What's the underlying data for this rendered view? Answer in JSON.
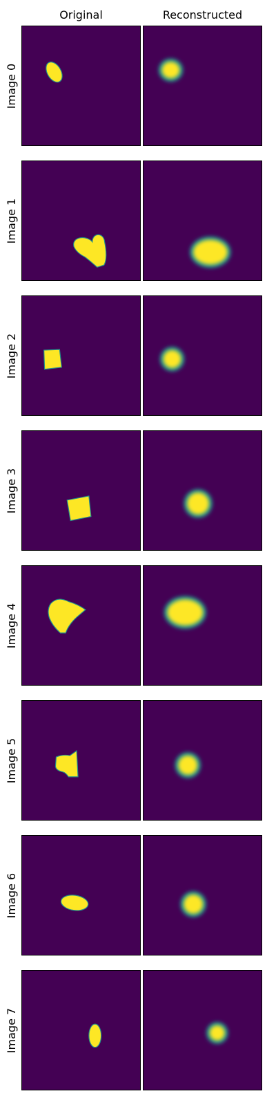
{
  "columns": {
    "original": "Original",
    "reconstructed": "Reconstructed"
  },
  "colors": {
    "background": "#440154",
    "shape": "#fde725",
    "edge": "#21918c"
  },
  "rows": [
    {
      "label": "Image 0",
      "original_shape": "ellipse",
      "reconstructed_shape": "blurred-ellipse"
    },
    {
      "label": "Image 1",
      "original_shape": "heart",
      "reconstructed_shape": "blurred-ellipse"
    },
    {
      "label": "Image 2",
      "original_shape": "square",
      "reconstructed_shape": "blurred-circle"
    },
    {
      "label": "Image 3",
      "original_shape": "square",
      "reconstructed_shape": "blurred-circle"
    },
    {
      "label": "Image 4",
      "original_shape": "heart",
      "reconstructed_shape": "blurred-ellipse"
    },
    {
      "label": "Image 5",
      "original_shape": "heart",
      "reconstructed_shape": "blurred-circle"
    },
    {
      "label": "Image 6",
      "original_shape": "ellipse",
      "reconstructed_shape": "blurred-ellipse"
    },
    {
      "label": "Image 7",
      "original_shape": "ellipse",
      "reconstructed_shape": "blurred-circle"
    }
  ]
}
